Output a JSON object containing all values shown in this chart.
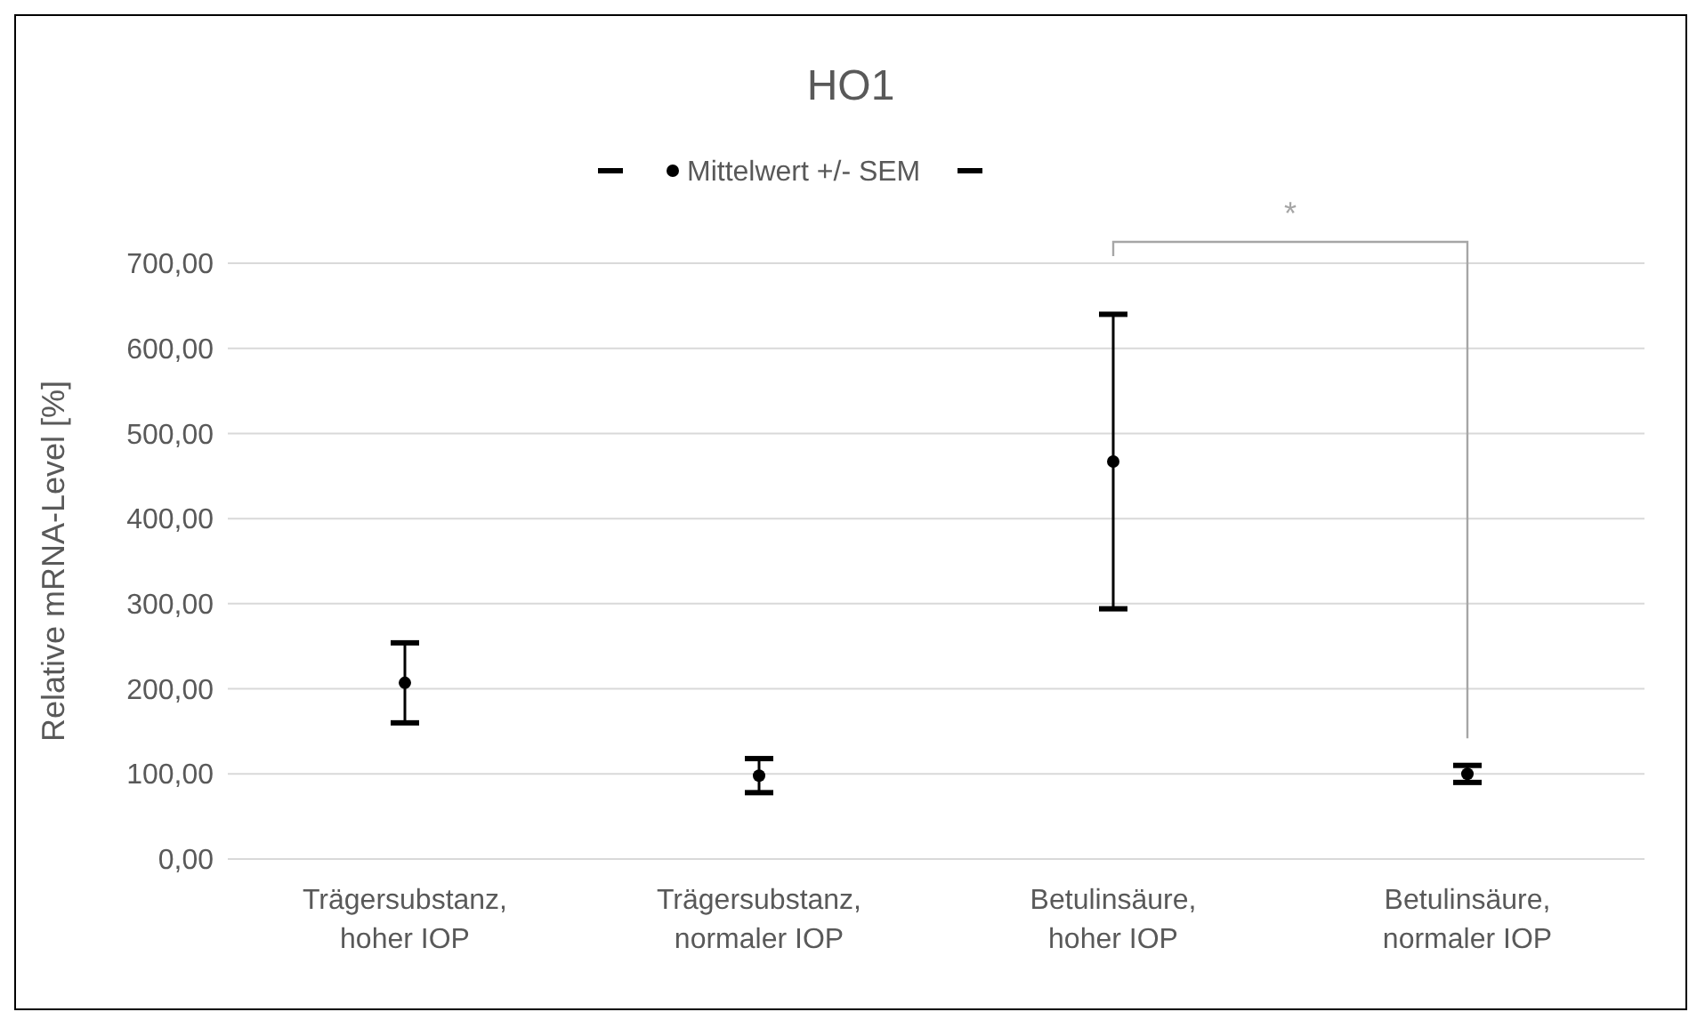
{
  "chart_data": {
    "type": "scatter",
    "title": "HO1",
    "ylabel": "Relative mRNA-Level [%]",
    "categories": [
      "Trägersubstanz, hoher IOP",
      "Trägersubstanz, normaler IOP",
      "Betulinsäure, hoher IOP",
      "Betulinsäure, normaler IOP"
    ],
    "series": [
      {
        "name": "Mittelwert +/- SEM",
        "color": "#000000",
        "values": [
          207,
          98,
          467,
          100
        ],
        "errors": [
          47,
          20,
          173,
          10
        ]
      }
    ],
    "ylim": [
      0,
      700
    ],
    "yticks": [
      {
        "value": 0,
        "label": "0,00"
      },
      {
        "value": 100,
        "label": "100,00"
      },
      {
        "value": 200,
        "label": "200,00"
      },
      {
        "value": 300,
        "label": "300,00"
      },
      {
        "value": 400,
        "label": "400,00"
      },
      {
        "value": 500,
        "label": "500,00"
      },
      {
        "value": 600,
        "label": "600,00"
      },
      {
        "value": 700,
        "label": "700,00"
      }
    ],
    "grid": "y",
    "legend": "top",
    "marker": "circle",
    "annotations": [
      "*"
    ]
  }
}
